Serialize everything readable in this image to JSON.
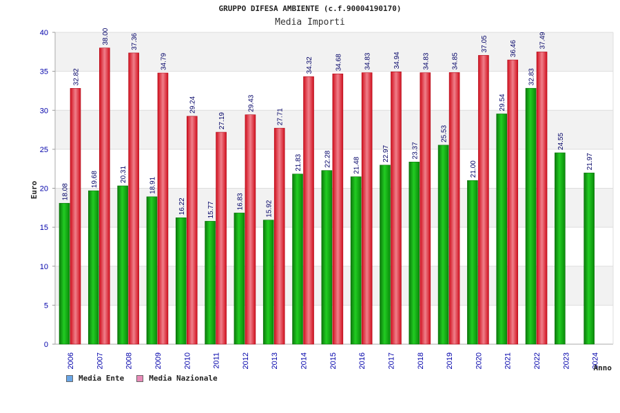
{
  "header": {
    "title": "GRUPPO DIFESA AMBIENTE (c.f.90004190170)",
    "subtitle": "Media Importi"
  },
  "legend": {
    "items": [
      {
        "label": "Media Ente",
        "color": "#6aa6e6"
      },
      {
        "label": "Media Nazionale",
        "color": "#e88ab8"
      }
    ]
  },
  "colors": {
    "ente": "#11aa11",
    "nazionale": "#ee2233",
    "band": "#f2f2f2",
    "tick_text": "#0000aa"
  },
  "chart_data": {
    "type": "bar",
    "title": "GRUPPO DIFESA AMBIENTE (c.f.90004190170)",
    "subtitle": "Media Importi",
    "xlabel": "Anno",
    "ylabel": "Euro",
    "ylim": [
      0,
      40
    ],
    "yticks": [
      0,
      5,
      10,
      15,
      20,
      25,
      30,
      35,
      40
    ],
    "grid": true,
    "legend_position": "bottom-left",
    "categories": [
      "2006",
      "2007",
      "2008",
      "2009",
      "2010",
      "2011",
      "2012",
      "2013",
      "2014",
      "2015",
      "2016",
      "2017",
      "2018",
      "2019",
      "2020",
      "2021",
      "2022",
      "2023",
      "2024"
    ],
    "series": [
      {
        "name": "Media Ente",
        "values": [
          18.08,
          19.68,
          20.31,
          18.91,
          16.22,
          15.77,
          16.83,
          15.92,
          21.83,
          22.28,
          21.48,
          22.97,
          23.37,
          25.53,
          21.0,
          29.54,
          32.83,
          24.55,
          21.97
        ],
        "labels": [
          "18.08",
          "19.68",
          "20.31",
          "18.91",
          "16.22",
          "15.77",
          "16.83",
          "15.92",
          "21.83",
          "22.28",
          "21.48",
          "22.97",
          "23.37",
          "25.53",
          "21.00",
          "29.54",
          "32.83",
          "24.55",
          "21.97"
        ]
      },
      {
        "name": "Media Nazionale",
        "values": [
          32.82,
          38.0,
          37.36,
          34.79,
          29.24,
          27.19,
          29.43,
          27.71,
          34.32,
          34.68,
          34.83,
          34.94,
          34.83,
          34.85,
          37.05,
          36.46,
          37.49,
          null,
          null
        ],
        "labels": [
          "32.82",
          "38.00",
          "37.36",
          "34.79",
          "29.24",
          "27.19",
          "29.43",
          "27.71",
          "34.32",
          "34.68",
          "34.83",
          "34.94",
          "34.83",
          "34.85",
          "37.05",
          "36.46",
          "37.49",
          null,
          null
        ]
      }
    ]
  }
}
